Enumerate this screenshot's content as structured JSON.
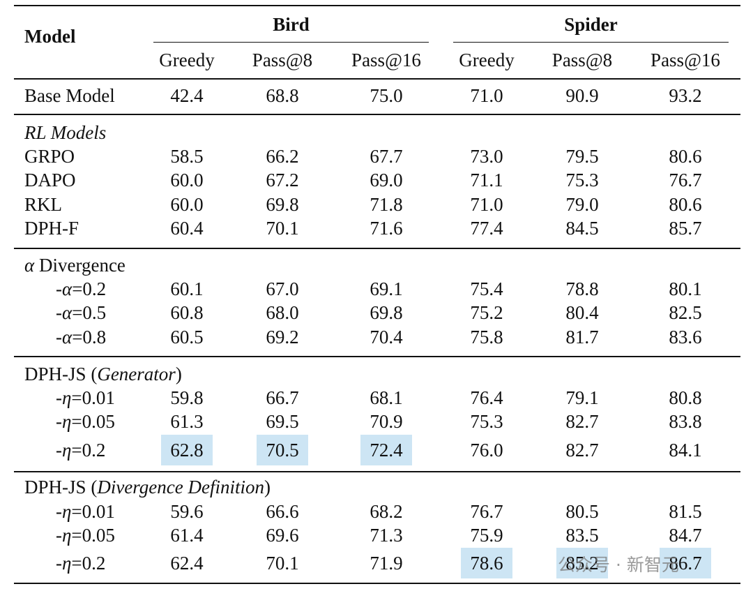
{
  "header": {
    "model": "Model",
    "groups": [
      {
        "name": "Bird",
        "columns": [
          "Greedy",
          "Pass@8",
          "Pass@16"
        ]
      },
      {
        "name": "Spider",
        "columns": [
          "Greedy",
          "Pass@8",
          "Pass@16"
        ]
      }
    ]
  },
  "sections": [
    {
      "rows": [
        {
          "label": "Base Model",
          "values": [
            "42.4",
            "68.8",
            "75.0",
            "71.0",
            "90.9",
            "93.2"
          ]
        }
      ]
    },
    {
      "title": "RL Models",
      "title_style": "italic",
      "rows": [
        {
          "label": "GRPO",
          "values": [
            "58.5",
            "66.2",
            "67.7",
            "73.0",
            "79.5",
            "80.6"
          ]
        },
        {
          "label": "DAPO",
          "values": [
            "60.0",
            "67.2",
            "69.0",
            "71.1",
            "75.3",
            "76.7"
          ]
        },
        {
          "label": "RKL",
          "values": [
            "60.0",
            "69.8",
            "71.8",
            "71.0",
            "79.0",
            "80.6"
          ]
        },
        {
          "label": "DPH-F",
          "values": [
            "60.4",
            "70.1",
            "71.6",
            "77.4",
            "84.5",
            "85.7"
          ]
        }
      ]
    },
    {
      "title": "α Divergence",
      "rows": [
        {
          "label": "-α=0.2",
          "values": [
            "60.1",
            "67.0",
            "69.1",
            "75.4",
            "78.8",
            "80.1"
          ]
        },
        {
          "label": "-α=0.5",
          "values": [
            "60.8",
            "68.0",
            "69.8",
            "75.2",
            "80.4",
            "82.5"
          ]
        },
        {
          "label": "-α=0.8",
          "values": [
            "60.5",
            "69.2",
            "70.4",
            "75.8",
            "81.7",
            "83.6"
          ]
        }
      ]
    },
    {
      "title": "DPH-JS",
      "title_note": "Generator",
      "rows": [
        {
          "label": "-η=0.01",
          "values": [
            "59.8",
            "66.7",
            "68.1",
            "76.4",
            "79.1",
            "80.8"
          ]
        },
        {
          "label": "-η=0.05",
          "values": [
            "61.3",
            "69.5",
            "70.9",
            "75.3",
            "82.7",
            "83.8"
          ]
        },
        {
          "label": "-η=0.2",
          "values": [
            "62.8",
            "70.5",
            "72.4",
            "76.0",
            "82.7",
            "84.1"
          ],
          "highlight": [
            0,
            1,
            2
          ]
        }
      ]
    },
    {
      "title": "DPH-JS",
      "title_note": "Divergence Definition",
      "rows": [
        {
          "label": "-η=0.01",
          "values": [
            "59.6",
            "66.6",
            "68.2",
            "76.7",
            "80.5",
            "81.5"
          ]
        },
        {
          "label": "-η=0.05",
          "values": [
            "61.4",
            "69.6",
            "71.3",
            "75.9",
            "83.5",
            "84.7"
          ]
        },
        {
          "label": "-η=0.2",
          "values": [
            "62.4",
            "70.1",
            "71.9",
            "78.6",
            "85.2",
            "86.7"
          ],
          "highlight": [
            3,
            4,
            5
          ]
        }
      ]
    }
  ],
  "watermark": "公众号 · 新智元"
}
